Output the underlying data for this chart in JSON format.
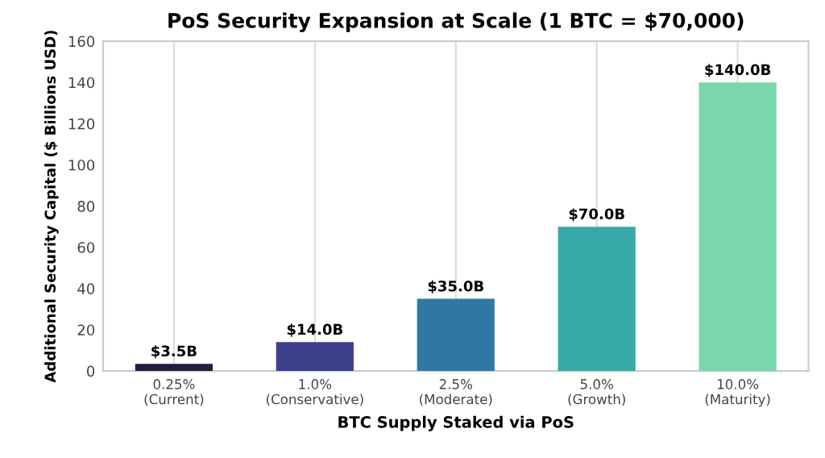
{
  "chart_data": {
    "type": "bar",
    "title": "PoS Security Expansion at Scale (1 BTC = $70,000)",
    "xlabel": "BTC Supply Staked via PoS",
    "ylabel": "Additional Security Capital ($ Billions USD)",
    "categories": [
      "0.25%\n(Current)",
      "1.0%\n(Conservative)",
      "2.5%\n(Moderate)",
      "5.0%\n(Growth)",
      "10.0%\n(Maturity)"
    ],
    "values": [
      3.5,
      14.0,
      35.0,
      70.0,
      140.0
    ],
    "value_labels": [
      "$3.5B",
      "$14.0B",
      "$35.0B",
      "$70.0B",
      "$140.0B"
    ],
    "colors": [
      "#1c1f3f",
      "#3c3f8a",
      "#2f78a4",
      "#36aaa8",
      "#7ad6ab"
    ],
    "ylim": [
      0,
      160
    ],
    "yticks": [
      0,
      20,
      40,
      60,
      80,
      100,
      120,
      140,
      160
    ],
    "grid": "x"
  }
}
